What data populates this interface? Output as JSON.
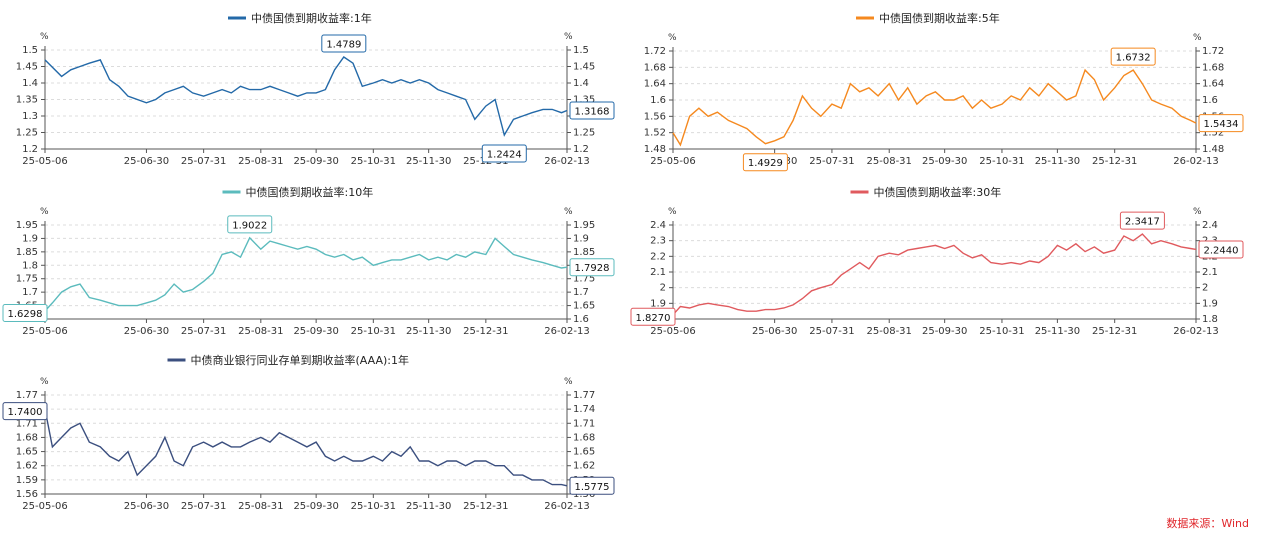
{
  "source": {
    "text": "数据来源：Wind",
    "color": "#e0262b"
  },
  "chart_data": [
    {
      "type": "line",
      "title": "中债国债到期收益率:1年",
      "unit": "%",
      "color": "#2369a8",
      "ylim": [
        1.2,
        1.5
      ],
      "yticks": [
        "1.2",
        "1.25",
        "1.3",
        "1.35",
        "1.4",
        "1.45",
        "1.5"
      ],
      "x": [
        "25-05-06",
        "25-05-15",
        "25-05-20",
        "25-05-25",
        "25-05-30",
        "25-06-05",
        "25-06-10",
        "25-06-15",
        "25-06-20",
        "25-06-30",
        "25-07-05",
        "25-07-10",
        "25-07-15",
        "25-07-20",
        "25-07-25",
        "25-07-31",
        "25-08-05",
        "25-08-10",
        "25-08-15",
        "25-08-20",
        "25-08-25",
        "25-08-31",
        "25-09-05",
        "25-09-10",
        "25-09-15",
        "25-09-20",
        "25-09-25",
        "25-09-30",
        "25-10-05",
        "25-10-10",
        "25-10-15",
        "25-10-20",
        "25-10-25",
        "25-10-31",
        "25-11-05",
        "25-11-10",
        "25-11-15",
        "25-11-20",
        "25-11-25",
        "25-11-30",
        "25-12-05",
        "25-12-10",
        "25-12-15",
        "25-12-20",
        "25-12-25",
        "25-12-31",
        "26-01-05",
        "26-01-10",
        "26-01-15",
        "26-01-20",
        "26-01-25",
        "26-01-31",
        "26-02-05",
        "26-02-10",
        "26-02-13"
      ],
      "values": [
        1.47,
        1.42,
        1.44,
        1.45,
        1.46,
        1.47,
        1.41,
        1.39,
        1.36,
        1.34,
        1.35,
        1.37,
        1.38,
        1.39,
        1.37,
        1.36,
        1.37,
        1.38,
        1.37,
        1.39,
        1.38,
        1.38,
        1.39,
        1.38,
        1.37,
        1.36,
        1.37,
        1.37,
        1.38,
        1.44,
        1.4789,
        1.46,
        1.39,
        1.4,
        1.41,
        1.4,
        1.41,
        1.4,
        1.41,
        1.4,
        1.38,
        1.37,
        1.36,
        1.35,
        1.29,
        1.33,
        1.35,
        1.2424,
        1.29,
        1.3,
        1.31,
        1.32,
        1.32,
        1.31,
        1.3168
      ],
      "xticks": [
        "25-05-06",
        "25-06-30",
        "25-07-31",
        "25-08-31",
        "25-09-30",
        "25-10-31",
        "25-11-30",
        "25-12-31",
        "26-02-13"
      ],
      "callouts": [
        {
          "x": "25-10-15",
          "label": "1.4789"
        },
        {
          "x": "26-01-10",
          "label": "1.2424"
        },
        {
          "x": "26-02-13",
          "label": "1.3168"
        }
      ]
    },
    {
      "type": "line",
      "title": "中债国债到期收益率:5年",
      "unit": "%",
      "color": "#f5891f",
      "ylim": [
        1.48,
        1.72
      ],
      "yticks": [
        "1.48",
        "1.52",
        "1.56",
        "1.6",
        "1.64",
        "1.68",
        "1.72"
      ],
      "x": [
        "25-05-06",
        "25-05-10",
        "25-05-15",
        "25-05-20",
        "25-05-25",
        "25-05-30",
        "25-06-05",
        "25-06-10",
        "25-06-15",
        "25-06-20",
        "25-06-25",
        "25-06-30",
        "25-07-05",
        "25-07-10",
        "25-07-15",
        "25-07-20",
        "25-07-25",
        "25-07-31",
        "25-08-05",
        "25-08-10",
        "25-08-15",
        "25-08-20",
        "25-08-25",
        "25-08-31",
        "25-09-05",
        "25-09-10",
        "25-09-15",
        "25-09-20",
        "25-09-25",
        "25-09-30",
        "25-10-05",
        "25-10-10",
        "25-10-15",
        "25-10-20",
        "25-10-25",
        "25-10-31",
        "25-11-05",
        "25-11-10",
        "25-11-15",
        "25-11-20",
        "25-11-25",
        "25-11-30",
        "25-12-05",
        "25-12-10",
        "25-12-15",
        "25-12-20",
        "25-12-25",
        "25-12-31",
        "26-01-05",
        "26-01-10",
        "26-01-15",
        "26-01-20",
        "26-01-25",
        "26-01-31",
        "26-02-05",
        "26-02-10",
        "26-02-13"
      ],
      "values": [
        1.52,
        1.49,
        1.56,
        1.58,
        1.56,
        1.57,
        1.55,
        1.54,
        1.53,
        1.51,
        1.4929,
        1.5,
        1.51,
        1.55,
        1.61,
        1.58,
        1.56,
        1.59,
        1.58,
        1.64,
        1.62,
        1.63,
        1.61,
        1.64,
        1.6,
        1.63,
        1.59,
        1.61,
        1.62,
        1.6,
        1.6,
        1.61,
        1.58,
        1.6,
        1.58,
        1.59,
        1.61,
        1.6,
        1.63,
        1.61,
        1.64,
        1.62,
        1.6,
        1.61,
        1.6732,
        1.65,
        1.6,
        1.63,
        1.66,
        1.6732,
        1.64,
        1.6,
        1.59,
        1.58,
        1.56,
        1.55,
        1.5434
      ],
      "xticks": [
        "25-05-06",
        "25-06-30",
        "25-07-31",
        "25-08-31",
        "25-09-30",
        "25-10-31",
        "25-11-30",
        "25-12-31",
        "26-02-13"
      ],
      "callouts": [
        {
          "x": "25-06-25",
          "label": "1.4929"
        },
        {
          "x": "26-01-10",
          "label": "1.6732"
        },
        {
          "x": "26-02-13",
          "label": "1.5434"
        }
      ]
    },
    {
      "type": "line",
      "title": "中债国债到期收益率:10年",
      "unit": "%",
      "color": "#5bbbbd",
      "ylim": [
        1.6,
        1.95
      ],
      "yticks": [
        "1.6",
        "1.65",
        "1.7",
        "1.75",
        "1.8",
        "1.85",
        "1.9",
        "1.95"
      ],
      "x": [
        "25-05-06",
        "25-05-10",
        "25-05-15",
        "25-05-20",
        "25-05-25",
        "25-05-30",
        "25-06-05",
        "25-06-10",
        "25-06-15",
        "25-06-20",
        "25-06-25",
        "25-06-30",
        "25-07-05",
        "25-07-10",
        "25-07-15",
        "25-07-20",
        "25-07-25",
        "25-07-31",
        "25-08-05",
        "25-08-10",
        "25-08-15",
        "25-08-20",
        "25-08-25",
        "25-08-31",
        "25-09-05",
        "25-09-10",
        "25-09-15",
        "25-09-20",
        "25-09-25",
        "25-09-30",
        "25-10-05",
        "25-10-10",
        "25-10-15",
        "25-10-20",
        "25-10-25",
        "25-10-31",
        "25-11-05",
        "25-11-10",
        "25-11-15",
        "25-11-20",
        "25-11-25",
        "25-11-30",
        "25-12-05",
        "25-12-10",
        "25-12-15",
        "25-12-20",
        "25-12-25",
        "25-12-31",
        "26-01-05",
        "26-01-10",
        "26-01-15",
        "26-01-20",
        "26-01-25",
        "26-01-31",
        "26-02-05",
        "26-02-10",
        "26-02-13"
      ],
      "values": [
        1.6298,
        1.66,
        1.7,
        1.72,
        1.73,
        1.68,
        1.67,
        1.66,
        1.65,
        1.65,
        1.65,
        1.66,
        1.67,
        1.69,
        1.73,
        1.7,
        1.71,
        1.74,
        1.77,
        1.84,
        1.85,
        1.83,
        1.9022,
        1.86,
        1.89,
        1.88,
        1.87,
        1.86,
        1.87,
        1.86,
        1.84,
        1.83,
        1.84,
        1.82,
        1.83,
        1.8,
        1.81,
        1.82,
        1.82,
        1.83,
        1.84,
        1.82,
        1.83,
        1.82,
        1.84,
        1.83,
        1.85,
        1.84,
        1.9,
        1.87,
        1.84,
        1.83,
        1.82,
        1.81,
        1.8,
        1.79,
        1.7928
      ],
      "xticks": [
        "25-05-06",
        "25-06-30",
        "25-07-31",
        "25-08-31",
        "25-09-30",
        "25-10-31",
        "25-11-30",
        "25-12-31",
        "26-02-13"
      ],
      "callouts": [
        {
          "x": "25-05-06",
          "label": "1.6298"
        },
        {
          "x": "25-08-25",
          "label": "1.9022"
        },
        {
          "x": "26-02-13",
          "label": "1.7928"
        }
      ]
    },
    {
      "type": "line",
      "title": "中债国债到期收益率:30年",
      "unit": "%",
      "color": "#e05a5e",
      "ylim": [
        1.8,
        2.4
      ],
      "yticks": [
        "1.8",
        "1.9",
        "2",
        "2.1",
        "2.2",
        "2.3",
        "2.4"
      ],
      "x": [
        "25-05-06",
        "25-05-10",
        "25-05-15",
        "25-05-20",
        "25-05-25",
        "25-05-30",
        "25-06-05",
        "25-06-10",
        "25-06-15",
        "25-06-20",
        "25-06-25",
        "25-06-30",
        "25-07-05",
        "25-07-10",
        "25-07-15",
        "25-07-20",
        "25-07-25",
        "25-07-31",
        "25-08-05",
        "25-08-10",
        "25-08-15",
        "25-08-20",
        "25-08-25",
        "25-08-31",
        "25-09-05",
        "25-09-10",
        "25-09-15",
        "25-09-20",
        "25-09-25",
        "25-09-30",
        "25-10-05",
        "25-10-10",
        "25-10-15",
        "25-10-20",
        "25-10-25",
        "25-10-31",
        "25-11-05",
        "25-11-10",
        "25-11-15",
        "25-11-20",
        "25-11-25",
        "25-11-30",
        "25-12-05",
        "25-12-10",
        "25-12-15",
        "25-12-20",
        "25-12-25",
        "25-12-31",
        "26-01-05",
        "26-01-10",
        "26-01-15",
        "26-01-20",
        "26-01-25",
        "26-01-31",
        "26-02-05",
        "26-02-10",
        "26-02-13"
      ],
      "values": [
        1.827,
        1.88,
        1.87,
        1.89,
        1.9,
        1.89,
        1.88,
        1.86,
        1.85,
        1.85,
        1.86,
        1.86,
        1.87,
        1.89,
        1.93,
        1.98,
        2.0,
        2.02,
        2.08,
        2.12,
        2.16,
        2.12,
        2.2,
        2.22,
        2.21,
        2.24,
        2.25,
        2.26,
        2.27,
        2.25,
        2.27,
        2.22,
        2.19,
        2.21,
        2.16,
        2.15,
        2.16,
        2.15,
        2.17,
        2.16,
        2.2,
        2.27,
        2.24,
        2.28,
        2.23,
        2.26,
        2.22,
        2.24,
        2.33,
        2.3,
        2.3417,
        2.28,
        2.3,
        2.28,
        2.26,
        2.25,
        2.244
      ],
      "xticks": [
        "25-05-06",
        "25-06-30",
        "25-07-31",
        "25-08-31",
        "25-09-30",
        "25-10-31",
        "25-11-30",
        "25-12-31",
        "26-02-13"
      ],
      "callouts": [
        {
          "x": "25-05-06",
          "label": "1.8270"
        },
        {
          "x": "26-01-15",
          "label": "2.3417"
        },
        {
          "x": "26-02-13",
          "label": "2.2440"
        }
      ]
    },
    {
      "type": "line",
      "title": "中债商业银行同业存单到期收益率(AAA):1年",
      "unit": "%",
      "color": "#3b4f7f",
      "ylim": [
        1.56,
        1.77
      ],
      "yticks": [
        "1.56",
        "1.59",
        "1.62",
        "1.65",
        "1.68",
        "1.71",
        "1.74",
        "1.77"
      ],
      "x": [
        "25-05-06",
        "25-05-10",
        "25-05-15",
        "25-05-20",
        "25-05-25",
        "25-05-30",
        "25-06-05",
        "25-06-10",
        "25-06-15",
        "25-06-20",
        "25-06-25",
        "25-06-30",
        "25-07-05",
        "25-07-10",
        "25-07-15",
        "25-07-20",
        "25-07-25",
        "25-07-31",
        "25-08-05",
        "25-08-10",
        "25-08-15",
        "25-08-20",
        "25-08-25",
        "25-08-31",
        "25-09-05",
        "25-09-10",
        "25-09-15",
        "25-09-20",
        "25-09-25",
        "25-09-30",
        "25-10-05",
        "25-10-10",
        "25-10-15",
        "25-10-20",
        "25-10-25",
        "25-10-31",
        "25-11-05",
        "25-11-10",
        "25-11-15",
        "25-11-20",
        "25-11-25",
        "25-11-30",
        "25-12-05",
        "25-12-10",
        "25-12-15",
        "25-12-20",
        "25-12-25",
        "25-12-31",
        "26-01-05",
        "26-01-10",
        "26-01-15",
        "26-01-20",
        "26-01-25",
        "26-01-31",
        "26-02-05",
        "26-02-10",
        "26-02-13"
      ],
      "values": [
        1.74,
        1.66,
        1.68,
        1.7,
        1.71,
        1.67,
        1.66,
        1.64,
        1.63,
        1.65,
        1.6,
        1.62,
        1.64,
        1.68,
        1.63,
        1.62,
        1.66,
        1.67,
        1.66,
        1.67,
        1.66,
        1.66,
        1.67,
        1.68,
        1.67,
        1.69,
        1.68,
        1.67,
        1.66,
        1.67,
        1.64,
        1.63,
        1.64,
        1.63,
        1.63,
        1.64,
        1.63,
        1.65,
        1.64,
        1.66,
        1.63,
        1.63,
        1.62,
        1.63,
        1.63,
        1.62,
        1.63,
        1.63,
        1.62,
        1.62,
        1.6,
        1.6,
        1.59,
        1.59,
        1.58,
        1.58,
        1.5775
      ],
      "xticks": [
        "25-05-06",
        "25-06-30",
        "25-07-31",
        "25-08-31",
        "25-09-30",
        "25-10-31",
        "25-11-30",
        "25-12-31",
        "26-02-13"
      ],
      "callouts": [
        {
          "x": "25-05-06",
          "label": "1.7400"
        },
        {
          "x": "26-02-13",
          "label": "1.5775"
        }
      ]
    }
  ]
}
